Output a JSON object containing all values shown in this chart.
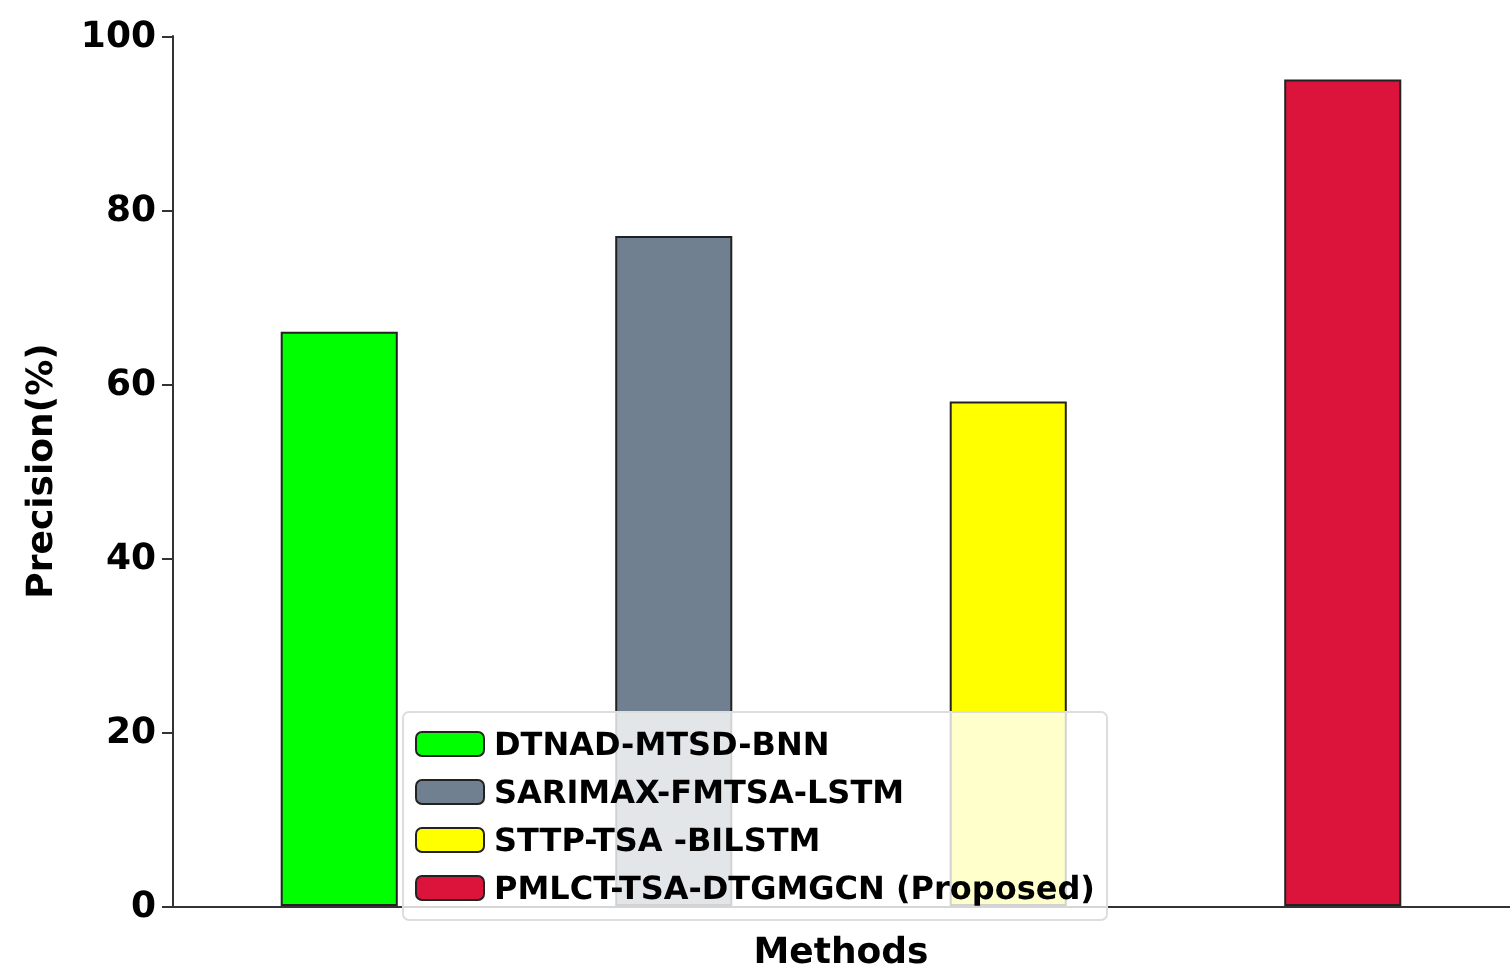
{
  "chart_data": {
    "type": "bar",
    "xlabel": "Methods",
    "ylabel": "Precision(%)",
    "categories": [
      null,
      null,
      null,
      null
    ],
    "series": [
      {
        "name": "DTNAD-MTSD-BNN",
        "color": "#00ff00",
        "values": [
          66,
          null,
          null,
          null
        ]
      },
      {
        "name": "SARIMAX-FMTSA-LSTM",
        "color": "#708090",
        "values": [
          null,
          77,
          null,
          null
        ]
      },
      {
        "name": "STTP-TSA -BILSTM",
        "color": "#ffff00",
        "values": [
          null,
          null,
          58,
          null
        ]
      },
      {
        "name": "PMLCT-TSA-DTGMGCN (Proposed)",
        "color": "#dc143c",
        "values": [
          null,
          null,
          null,
          95
        ]
      }
    ],
    "ylim": [
      0,
      100
    ],
    "yticks": [
      0,
      20,
      40,
      60,
      80,
      100
    ],
    "grid": false,
    "legend": "bottom"
  }
}
